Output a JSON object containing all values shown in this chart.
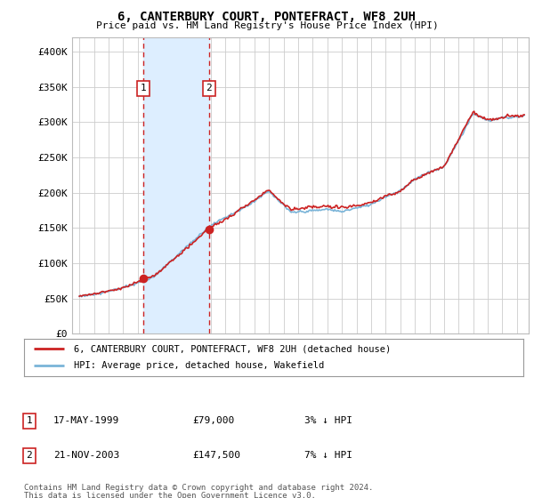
{
  "title": "6, CANTERBURY COURT, PONTEFRACT, WF8 2UH",
  "subtitle": "Price paid vs. HM Land Registry's House Price Index (HPI)",
  "legend_line1": "6, CANTERBURY COURT, PONTEFRACT, WF8 2UH (detached house)",
  "legend_line2": "HPI: Average price, detached house, Wakefield",
  "transaction1": {
    "label": "1",
    "date": "17-MAY-1999",
    "price": "£79,000",
    "hpi_diff": "3% ↓ HPI"
  },
  "transaction2": {
    "label": "2",
    "date": "21-NOV-2003",
    "price": "£147,500",
    "hpi_diff": "7% ↓ HPI"
  },
  "footnote1": "Contains HM Land Registry data © Crown copyright and database right 2024.",
  "footnote2": "This data is licensed under the Open Government Licence v3.0.",
  "ylim": [
    0,
    420000
  ],
  "yticks": [
    0,
    50000,
    100000,
    150000,
    200000,
    250000,
    300000,
    350000,
    400000
  ],
  "ytick_labels": [
    "£0",
    "£50K",
    "£100K",
    "£150K",
    "£200K",
    "£250K",
    "£300K",
    "£350K",
    "£400K"
  ],
  "hpi_color": "#7ab4d8",
  "price_color": "#cc2222",
  "transaction1_x": 1999.38,
  "transaction2_x": 2003.89,
  "shading_color": "#ddeeff",
  "background_color": "#ffffff",
  "grid_color": "#cccccc",
  "xlim_left": 1994.5,
  "xlim_right": 2025.8
}
